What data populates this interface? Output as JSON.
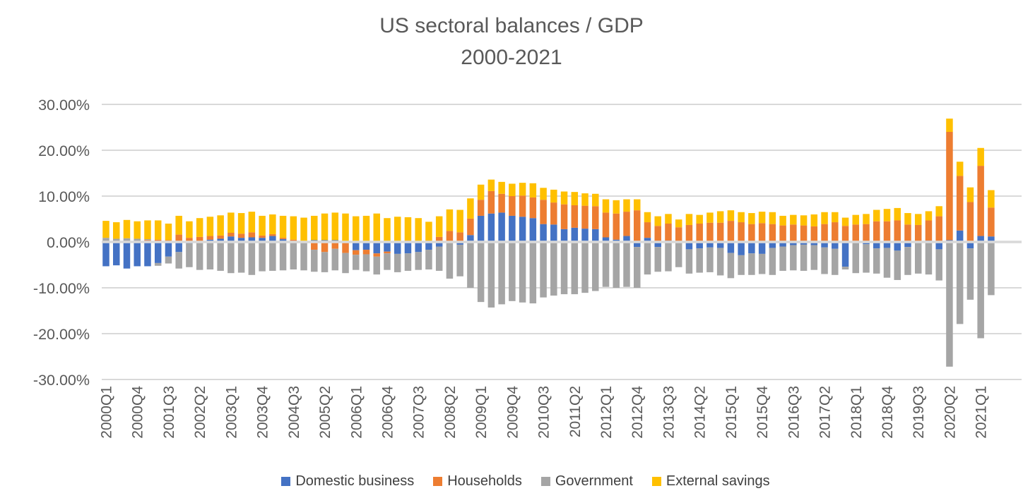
{
  "title": {
    "line1": "US sectoral balances / GDP",
    "line2": "2000-2021"
  },
  "y_axis": {
    "tick_labels": [
      "30.00%",
      "20.00%",
      "10.00%",
      "0.00%",
      "-10.00%",
      "-20.00%",
      "-30.00%"
    ],
    "tick_values": [
      30,
      20,
      10,
      0,
      -10,
      -20,
      -30
    ]
  },
  "x_axis": {
    "tick_every": 3
  },
  "colors": {
    "domestic_business": "#4472C4",
    "households": "#ED7D31",
    "government": "#A5A5A5",
    "external_savings": "#FFC000",
    "gridline": "#D9D9D9",
    "axis_text": "#595959",
    "legend_text": "#404040",
    "title_text": "#595959"
  },
  "chart_data": {
    "type": "bar",
    "stacked": true,
    "title": "US sectoral balances / GDP 2000-2021",
    "xlabel": "",
    "ylabel": "",
    "unit": "percent of GDP",
    "ylim": [
      -30,
      30
    ],
    "grid": true,
    "legend_position": "bottom",
    "categories": [
      "2000Q1",
      "2000Q2",
      "2000Q3",
      "2000Q4",
      "2001Q1",
      "2001Q2",
      "2001Q3",
      "2001Q4",
      "2002Q1",
      "2002Q2",
      "2002Q3",
      "2002Q4",
      "2003Q1",
      "2003Q2",
      "2003Q3",
      "2003Q4",
      "2004Q1",
      "2004Q2",
      "2004Q3",
      "2004Q4",
      "2005Q1",
      "2005Q2",
      "2005Q3",
      "2005Q4",
      "2006Q1",
      "2006Q2",
      "2006Q3",
      "2006Q4",
      "2007Q1",
      "2007Q2",
      "2007Q3",
      "2007Q4",
      "2008Q1",
      "2008Q2",
      "2008Q3",
      "2008Q4",
      "2009Q1",
      "2009Q2",
      "2009Q3",
      "2009Q4",
      "2010Q1",
      "2010Q2",
      "2010Q3",
      "2010Q4",
      "2011Q1",
      "2011Q2",
      "2011Q3",
      "2011Q4",
      "2012Q1",
      "2012Q2",
      "2012Q3",
      "2012Q4",
      "2013Q1",
      "2013Q2",
      "2013Q3",
      "2013Q4",
      "2014Q1",
      "2014Q2",
      "2014Q3",
      "2014Q4",
      "2015Q1",
      "2015Q2",
      "2015Q3",
      "2015Q4",
      "2016Q1",
      "2016Q2",
      "2016Q3",
      "2016Q4",
      "2017Q1",
      "2017Q2",
      "2017Q3",
      "2017Q4",
      "2018Q1",
      "2018Q2",
      "2018Q3",
      "2018Q4",
      "2019Q1",
      "2019Q2",
      "2019Q3",
      "2019Q4",
      "2020Q1",
      "2020Q2",
      "2020Q3",
      "2020Q4",
      "2021Q1",
      "2021Q2"
    ],
    "series": [
      {
        "name": "Domestic business",
        "color": "#4472C4",
        "values": [
          -5.3,
          -5.1,
          -5.8,
          -5.3,
          -5.3,
          -4.6,
          -3.2,
          -2.2,
          -0.3,
          -0.2,
          0.5,
          0.7,
          1.2,
          0.9,
          1.0,
          0.9,
          1.3,
          0.6,
          0.2,
          0.1,
          0.4,
          0.4,
          0.4,
          0.2,
          -1.8,
          -1.7,
          -2.5,
          -2.1,
          -2.6,
          -2.5,
          -2.2,
          -1.7,
          -1.0,
          0.0,
          -0.6,
          1.5,
          5.7,
          6.2,
          6.4,
          5.7,
          5.5,
          5.2,
          3.9,
          3.8,
          2.8,
          3.1,
          2.9,
          2.8,
          1.0,
          0.5,
          1.3,
          -1.1,
          0.9,
          -1.1,
          0.3,
          0.0,
          -1.6,
          -1.4,
          -1.2,
          -1.3,
          -2.4,
          -2.9,
          -2.5,
          -2.6,
          -1.3,
          -1.0,
          -0.7,
          -0.6,
          -0.7,
          -1.2,
          -1.5,
          -5.4,
          -0.2,
          -0.5,
          -1.4,
          -1.3,
          -1.9,
          -1.1,
          0.0,
          0.3,
          -1.6,
          0.4,
          2.5,
          -1.4,
          1.3,
          1.2
        ]
      },
      {
        "name": "Households",
        "color": "#ED7D31",
        "values": [
          0.0,
          0.0,
          0.2,
          0.2,
          0.4,
          0.5,
          0.4,
          1.6,
          0.9,
          1.1,
          0.8,
          0.7,
          0.8,
          0.9,
          1.1,
          0.5,
          0.4,
          0.3,
          0.3,
          -0.2,
          -1.7,
          -2.2,
          -1.5,
          -2.4,
          -1.0,
          -1.0,
          -0.7,
          -0.4,
          0.0,
          0.3,
          0.1,
          0.3,
          1.1,
          2.4,
          2.1,
          3.6,
          3.5,
          4.9,
          4.1,
          4.3,
          4.6,
          4.5,
          5.3,
          4.8,
          5.4,
          4.9,
          5.0,
          5.0,
          5.4,
          5.7,
          5.3,
          6.9,
          3.4,
          3.5,
          3.7,
          3.2,
          3.7,
          4.0,
          4.2,
          4.2,
          4.6,
          4.3,
          3.9,
          4.1,
          3.9,
          3.6,
          3.8,
          3.6,
          3.4,
          3.9,
          4.3,
          3.5,
          3.8,
          3.9,
          4.5,
          4.5,
          4.7,
          3.8,
          3.7,
          4.4,
          5.6,
          23.6,
          11.9,
          8.7,
          15.3,
          6.3
        ]
      },
      {
        "name": "Government",
        "color": "#A5A5A5",
        "values": [
          0.9,
          0.7,
          0.6,
          0.5,
          0.2,
          -0.6,
          -1.5,
          -3.6,
          -5.2,
          -5.9,
          -6.0,
          -6.3,
          -6.8,
          -6.7,
          -7.2,
          -6.4,
          -6.3,
          -6.2,
          -6.0,
          -6.0,
          -4.8,
          -4.4,
          -4.7,
          -4.4,
          -3.3,
          -3.7,
          -3.9,
          -3.6,
          -4.0,
          -3.8,
          -3.9,
          -4.3,
          -5.3,
          -8.0,
          -6.9,
          -10.0,
          -13.1,
          -14.3,
          -13.6,
          -12.9,
          -13.2,
          -13.4,
          -12.1,
          -11.7,
          -11.4,
          -11.4,
          -11.1,
          -10.7,
          -9.8,
          -10.0,
          -9.8,
          -8.9,
          -7.1,
          -5.4,
          -6.4,
          -5.5,
          -5.3,
          -5.3,
          -5.4,
          -6.0,
          -5.5,
          -4.3,
          -4.7,
          -4.4,
          -5.9,
          -5.3,
          -5.5,
          -5.7,
          -5.4,
          -5.8,
          -5.7,
          -0.6,
          -6.6,
          -6.2,
          -5.5,
          -6.5,
          -6.4,
          -6.1,
          -6.9,
          -7.1,
          -6.8,
          -27.2,
          -17.9,
          -11.2,
          -21.0,
          -11.6
        ]
      },
      {
        "name": "External savings",
        "color": "#FFC000",
        "values": [
          3.7,
          3.6,
          4.0,
          3.8,
          4.1,
          4.2,
          3.6,
          4.1,
          3.6,
          4.1,
          4.2,
          4.4,
          4.4,
          4.5,
          4.5,
          4.3,
          4.3,
          4.8,
          5.1,
          5.2,
          5.3,
          5.8,
          6.0,
          6.0,
          5.6,
          5.7,
          6.2,
          5.2,
          5.5,
          5.1,
          5.1,
          4.1,
          4.5,
          4.7,
          4.9,
          4.4,
          3.3,
          2.5,
          2.6,
          2.7,
          2.8,
          3.1,
          2.6,
          2.8,
          2.8,
          2.9,
          2.7,
          2.7,
          2.9,
          2.9,
          2.7,
          2.4,
          2.2,
          2.1,
          2.1,
          1.7,
          2.4,
          1.9,
          2.2,
          2.5,
          2.3,
          2.2,
          2.4,
          2.5,
          2.6,
          2.1,
          2.1,
          2.2,
          2.6,
          2.6,
          2.2,
          1.8,
          2.1,
          2.2,
          2.5,
          2.7,
          2.7,
          2.5,
          2.4,
          2.0,
          2.2,
          2.9,
          3.1,
          3.2,
          3.9,
          3.8
        ]
      }
    ]
  }
}
